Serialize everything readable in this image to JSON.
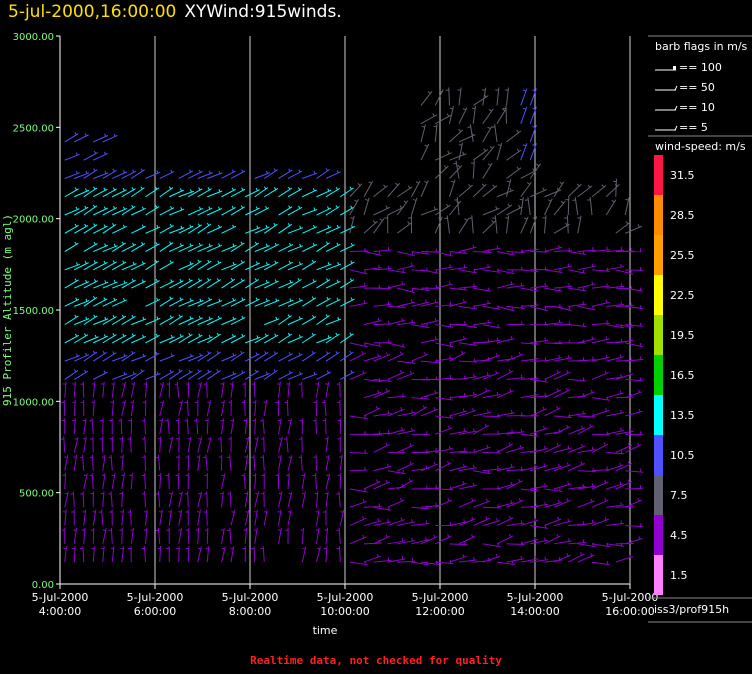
{
  "header": {
    "datetime": "5-jul-2000,16:00:00",
    "title": "XYWind:915winds."
  },
  "footer": "Realtime data, not checked for quality",
  "side": {
    "barb_title": "barb flags in m/s",
    "barbs": [
      "== 100",
      "== 50",
      "== 10",
      "== 5"
    ],
    "speed_title": "wind-speed: m/s",
    "scale_labels": [
      "31.5",
      "28.5",
      "25.5",
      "22.5",
      "19.5",
      "16.5",
      "13.5",
      "10.5",
      "7.5",
      "4.5",
      "1.5"
    ],
    "scale_colors": [
      "#ff1744",
      "#ff8c00",
      "#ffa000",
      "#ffff00",
      "#a0e000",
      "#00d000",
      "#00ffff",
      "#5050ff",
      "#606070",
      "#9000d0",
      "#ff80ff"
    ],
    "source": "iss3/prof915h"
  },
  "chart_data": {
    "type": "wind-barb",
    "ylabel": "915 Profiler Altitude (m agl)",
    "xlabel": "time",
    "ylim": [
      0,
      3000
    ],
    "y_ticks": [
      "0.00",
      "500.00",
      "1000.00",
      "1500.00",
      "2000.00",
      "2500.00",
      "3000.00"
    ],
    "x_ticks": [
      {
        "date": "5-Jul-2000",
        "time": "4:00:00"
      },
      {
        "date": "5-Jul-2000",
        "time": "6:00:00"
      },
      {
        "date": "5-Jul-2000",
        "time": "8:00:00"
      },
      {
        "date": "5-Jul-2000",
        "time": "10:00:00"
      },
      {
        "date": "5-Jul-2000",
        "time": "12:00:00"
      },
      {
        "date": "5-Jul-2000",
        "time": "14:00:00"
      },
      {
        "date": "5-Jul-2000",
        "time": "16:00:00"
      }
    ],
    "x_range_hours": [
      4.0,
      16.0
    ],
    "grid": "vertical",
    "series": [
      {
        "hours": [
          4.1,
          4.3,
          4.5,
          4.7,
          4.9,
          5.1,
          5.3,
          5.5,
          5.8,
          6.1,
          6.3,
          6.5,
          6.7,
          6.9,
          7.1,
          7.4,
          7.6,
          7.9,
          8.1,
          8.3,
          8.6,
          8.8,
          9.1,
          9.4,
          9.6,
          9.9,
          10.1,
          10.4,
          10.6,
          10.9,
          11.1,
          11.4,
          11.6,
          11.9,
          12.2,
          12.4,
          12.7,
          12.9,
          13.2,
          13.4,
          13.7,
          13.9,
          14.2,
          14.4,
          14.7,
          14.9,
          15.2,
          15.5,
          15.7,
          15.9
        ],
        "profile": "wind-profiles"
      }
    ]
  }
}
